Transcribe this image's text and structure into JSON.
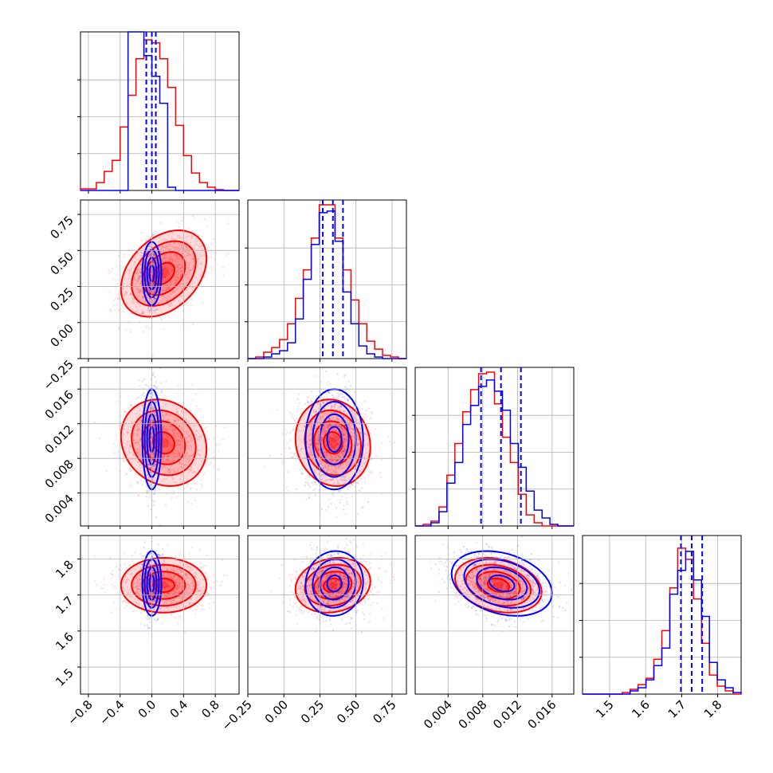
{
  "chart_data": {
    "type": "corner",
    "title": "",
    "grid": true,
    "series": [
      {
        "color": "#ff0000"
      },
      {
        "color": "#0000ff"
      }
    ],
    "parameters": [
      {
        "range": [
          -0.9,
          1.1
        ],
        "ticks": [
          -0.8,
          -0.4,
          0.0,
          0.4,
          0.8
        ],
        "tick_labels": [
          "−0.8",
          "−0.4",
          "0.0",
          "0.4",
          "0.8"
        ],
        "quantiles": [
          -0.07,
          0.0,
          0.05
        ]
      },
      {
        "range": [
          -0.25,
          0.85
        ],
        "ticks": [
          -0.25,
          0.0,
          0.25,
          0.5,
          0.75
        ],
        "tick_labels": [
          "−0.25",
          "0.00",
          "0.25",
          "0.50",
          "0.75"
        ],
        "quantiles": [
          0.27,
          0.34,
          0.41
        ]
      },
      {
        "range": [
          0.0002,
          0.0185
        ],
        "ticks": [
          0.004,
          0.008,
          0.012,
          0.016
        ],
        "tick_labels": [
          "0.004",
          "0.008",
          "0.012",
          "0.016"
        ],
        "quantiles": [
          0.0078,
          0.0101,
          0.0124
        ]
      },
      {
        "range": [
          1.425,
          1.865
        ],
        "ticks": [
          1.5,
          1.6,
          1.7,
          1.8
        ],
        "tick_labels": [
          "1.5",
          "1.6",
          "1.7",
          "1.8"
        ],
        "quantiles": [
          1.698,
          1.728,
          1.757
        ]
      }
    ],
    "histograms": [
      {
        "red": [
          0.01,
          0.01,
          0.05,
          0.12,
          0.19,
          0.4,
          0.6,
          0.83,
          0.95,
          0.93,
          0.83,
          0.65,
          0.41,
          0.22,
          0.11,
          0.05,
          0.02,
          0.005,
          0.0,
          0.0
        ],
        "blue": [
          0.0,
          0.0,
          0.0,
          0.0,
          0.0,
          0.0,
          1.0,
          1.0,
          0.85,
          0.72,
          0.55,
          0.02,
          0.0,
          0.0,
          0.0,
          0.0,
          0.0,
          0.0,
          0.0,
          0.0
        ]
      },
      {
        "red": [
          0.0,
          0.01,
          0.04,
          0.07,
          0.12,
          0.22,
          0.38,
          0.56,
          0.76,
          0.97,
          0.97,
          0.76,
          0.56,
          0.37,
          0.22,
          0.11,
          0.06,
          0.02,
          0.01,
          0.0
        ],
        "blue": [
          0.0,
          0.0,
          0.01,
          0.03,
          0.05,
          0.1,
          0.25,
          0.5,
          0.72,
          0.92,
          0.93,
          0.74,
          0.42,
          0.22,
          0.08,
          0.03,
          0.01,
          0.0,
          0.0,
          0.0
        ]
      },
      {
        "red": [
          0.0,
          0.01,
          0.03,
          0.12,
          0.32,
          0.52,
          0.72,
          0.86,
          0.96,
          0.97,
          0.77,
          0.56,
          0.4,
          0.2,
          0.07,
          0.02,
          0.0,
          0.0,
          0.0,
          0.0
        ],
        "blue": [
          0.0,
          0.0,
          0.02,
          0.09,
          0.27,
          0.4,
          0.64,
          0.76,
          0.88,
          0.92,
          0.85,
          0.73,
          0.52,
          0.37,
          0.22,
          0.1,
          0.05,
          0.01,
          0.0,
          0.0
        ]
      },
      {
        "red": [
          0.0,
          0.0,
          0.0,
          0.0,
          0.0,
          0.01,
          0.03,
          0.06,
          0.1,
          0.22,
          0.4,
          0.67,
          0.92,
          0.85,
          0.6,
          0.32,
          0.12,
          0.05,
          0.02,
          0.0
        ],
        "blue": [
          0.0,
          0.0,
          0.0,
          0.0,
          0.0,
          0.0,
          0.02,
          0.04,
          0.09,
          0.18,
          0.29,
          0.63,
          0.78,
          0.9,
          0.72,
          0.49,
          0.2,
          0.09,
          0.04,
          0.01
        ]
      }
    ],
    "pairs": [
      {
        "row": 1,
        "col": 0,
        "red": {
          "mean": [
            0.15,
            0.34
          ],
          "sd": [
            0.27,
            0.15
          ],
          "rho": 0.35
        },
        "blue": {
          "mean": [
            0.0,
            0.34
          ],
          "sd": [
            0.06,
            0.11
          ],
          "rho": 0.0
        }
      },
      {
        "row": 2,
        "col": 0,
        "red": {
          "mean": [
            0.15,
            0.0098
          ],
          "sd": [
            0.27,
            0.0025
          ],
          "rho": -0.15
        },
        "blue": {
          "mean": [
            0.0,
            0.0102
          ],
          "sd": [
            0.06,
            0.0029
          ],
          "rho": 0.0
        }
      },
      {
        "row": 2,
        "col": 1,
        "red": {
          "mean": [
            0.34,
            0.0098
          ],
          "sd": [
            0.13,
            0.0025
          ],
          "rho": -0.1
        },
        "blue": {
          "mean": [
            0.35,
            0.0102
          ],
          "sd": [
            0.1,
            0.0029
          ],
          "rho": 0.0
        }
      },
      {
        "row": 3,
        "col": 0,
        "red": {
          "mean": [
            0.15,
            1.727
          ],
          "sd": [
            0.27,
            0.038
          ],
          "rho": 0.0
        },
        "blue": {
          "mean": [
            0.0,
            1.732
          ],
          "sd": [
            0.06,
            0.045
          ],
          "rho": 0.0
        }
      },
      {
        "row": 3,
        "col": 1,
        "red": {
          "mean": [
            0.34,
            1.727
          ],
          "sd": [
            0.13,
            0.038
          ],
          "rho": 0.15
        },
        "blue": {
          "mean": [
            0.35,
            1.732
          ],
          "sd": [
            0.1,
            0.045
          ],
          "rho": 0.05
        }
      },
      {
        "row": 3,
        "col": 2,
        "red": {
          "mean": [
            0.0098,
            1.727
          ],
          "sd": [
            0.0025,
            0.038
          ],
          "rho": -0.25
        },
        "blue": {
          "mean": [
            0.0102,
            1.732
          ],
          "sd": [
            0.0029,
            0.045
          ],
          "rho": -0.3
        }
      }
    ],
    "contour_levels_sigma": [
      0.5,
      1.0,
      1.5,
      2.0
    ]
  }
}
